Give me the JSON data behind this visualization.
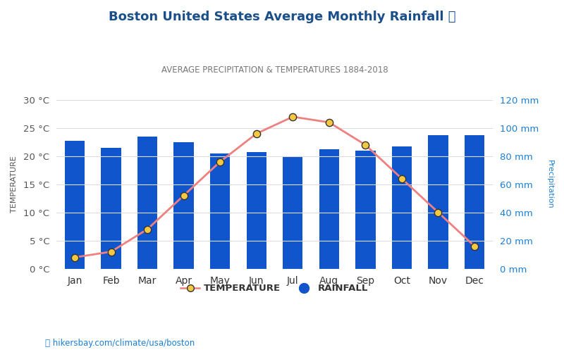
{
  "months": [
    "Jan",
    "Feb",
    "Mar",
    "Apr",
    "May",
    "Jun",
    "Jul",
    "Aug",
    "Sep",
    "Oct",
    "Nov",
    "Dec"
  ],
  "temperature": [
    2.0,
    3.0,
    7.0,
    13.0,
    19.0,
    24.0,
    27.0,
    26.0,
    22.0,
    16.0,
    10.0,
    4.0
  ],
  "rainfall_mm": [
    91,
    86,
    94,
    90,
    82,
    83,
    80,
    85,
    84,
    87,
    95,
    95
  ],
  "title": "Boston United States Average Monthly Rainfall 🌧",
  "subtitle": "AVERAGE PRECIPITATION & TEMPERATURES 1884-2018",
  "title_color": "#1b4f8a",
  "subtitle_color": "#777777",
  "bar_color": "#1155cc",
  "line_color": "#f08080",
  "marker_face": "#f5c842",
  "marker_edge": "#333333",
  "left_axis_color": "#555555",
  "right_axis_color": "#1b7fd4",
  "ylabel_left": "TEMPERATURE",
  "ylabel_right": "Precipitation",
  "ylim_left": [
    0,
    30
  ],
  "ylim_right": [
    0,
    120
  ],
  "yticks_left": [
    0,
    5,
    10,
    15,
    20,
    25,
    30
  ],
  "ytick_labels_left": [
    "0 °C",
    "5 °C",
    "10 °C",
    "15 °C",
    "20 °C",
    "25 °C",
    "30 °C"
  ],
  "yticks_right": [
    0,
    20,
    40,
    60,
    80,
    100,
    120
  ],
  "ytick_labels_right": [
    "0 mm",
    "20 mm",
    "40 mm",
    "60 mm",
    "80 mm",
    "100 mm",
    "120 mm"
  ],
  "footer_text": "📍 hikersbay.com/climate/usa/boston",
  "footer_color": "#1b7fd4",
  "legend_temp_label": "TEMPERATURE",
  "legend_rain_label": "RAINFALL",
  "background_color": "#ffffff",
  "grid_color": "#dddddd",
  "xtick_color": "#333333",
  "bar_width": 0.55
}
